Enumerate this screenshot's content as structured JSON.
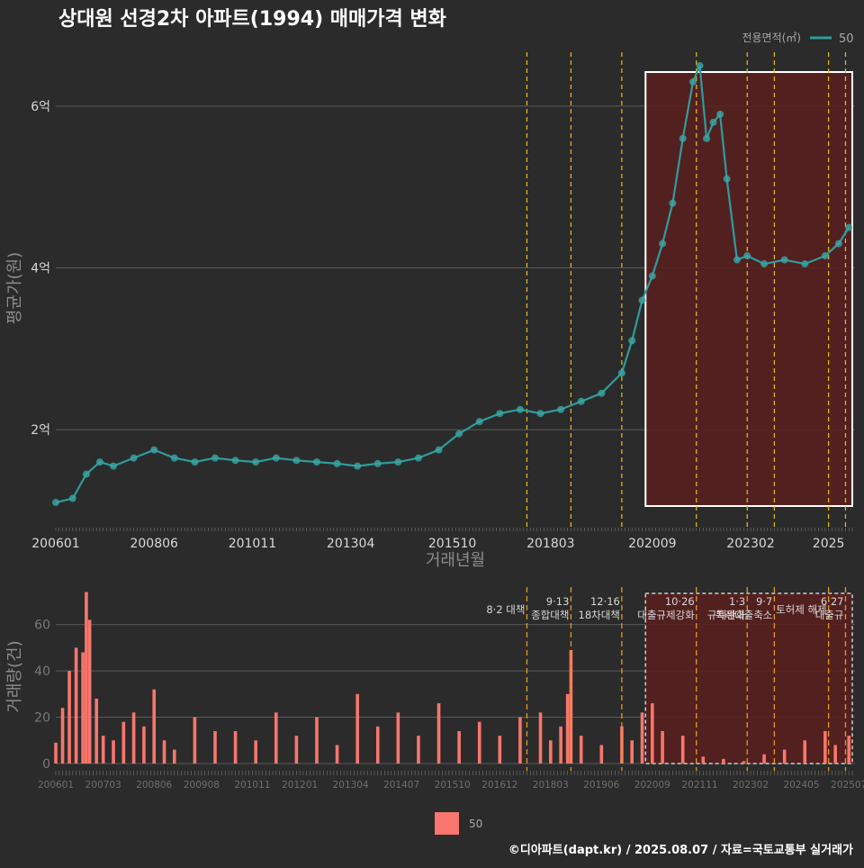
{
  "title": "상대원 선경2차 아파트(1994) 매매가격 변화",
  "footer": "©디아파트(dapt.kr) / 2025.08.07 / 자료=국토교통부 실거래가",
  "colors": {
    "background": "#2b2b2b",
    "price_line": "#2f9c9c",
    "price_point": "#3aa6a6",
    "volume_bar": "#f8766d",
    "policy_line": "#e5c21a",
    "highlight_fill": "#5a1f1f",
    "grid": "#5a5a5a"
  },
  "chart_data": [
    {
      "type": "scatter",
      "name": "price",
      "legend": {
        "title": "전용면적(㎡)",
        "label": "50",
        "position": "top-right"
      },
      "xlabel": "거래년월",
      "ylabel": "평균가(원)",
      "x_ticks": [
        "200601",
        "200806",
        "201011",
        "201304",
        "201510",
        "201803",
        "202009",
        "202302",
        "2025"
      ],
      "y_ticks": [
        {
          "value": 2,
          "label": "2억"
        },
        {
          "value": 4,
          "label": "4억"
        },
        {
          "value": 6,
          "label": "6억"
        }
      ],
      "y_unit": "억원",
      "ylim": [
        0.8,
        6.7
      ],
      "grid": true,
      "highlight_range": [
        "2020-07",
        "2025-08"
      ],
      "policy_dates": [
        "2017-08",
        "2018-09",
        "2019-12",
        "2021-10",
        "2023-01",
        "2023-09",
        "2025-01",
        "2025-06"
      ],
      "series": [
        {
          "name": "50",
          "x": [
            "2006-01",
            "2006-06",
            "2006-10",
            "2007-02",
            "2007-06",
            "2007-12",
            "2008-06",
            "2008-12",
            "2009-06",
            "2009-12",
            "2010-06",
            "2010-12",
            "2011-06",
            "2011-12",
            "2012-06",
            "2012-12",
            "2013-06",
            "2013-12",
            "2014-06",
            "2014-12",
            "2015-06",
            "2015-12",
            "2016-06",
            "2016-12",
            "2017-06",
            "2017-12",
            "2018-06",
            "2018-12",
            "2019-06",
            "2019-12",
            "2020-03",
            "2020-06",
            "2020-09",
            "2020-12",
            "2021-03",
            "2021-06",
            "2021-09",
            "2021-11",
            "2022-01",
            "2022-03",
            "2022-05",
            "2022-07",
            "2022-10",
            "2023-01",
            "2023-06",
            "2023-12",
            "2024-06",
            "2024-12",
            "2025-04",
            "2025-07"
          ],
          "y": [
            1.1,
            1.15,
            1.45,
            1.6,
            1.55,
            1.65,
            1.75,
            1.65,
            1.6,
            1.65,
            1.62,
            1.6,
            1.65,
            1.62,
            1.6,
            1.58,
            1.55,
            1.58,
            1.6,
            1.65,
            1.75,
            1.95,
            2.1,
            2.2,
            2.25,
            2.2,
            2.25,
            2.35,
            2.45,
            2.7,
            3.1,
            3.6,
            3.9,
            4.3,
            4.8,
            5.6,
            6.3,
            6.5,
            5.6,
            5.8,
            5.9,
            5.1,
            4.1,
            4.15,
            4.05,
            4.1,
            4.05,
            4.15,
            4.3,
            4.5
          ]
        }
      ]
    },
    {
      "type": "bar",
      "name": "volume",
      "ylabel": "거래량(건)",
      "x_ticks": [
        "200601",
        "200703",
        "200806",
        "200908",
        "201011",
        "201201",
        "201304",
        "201407",
        "201510",
        "201612",
        "201803",
        "201906",
        "202009",
        "202111",
        "202302",
        "202405",
        "202507"
      ],
      "y_ticks": [
        0,
        20,
        40,
        60
      ],
      "ylim": [
        0,
        75
      ],
      "grid": true,
      "legend": {
        "label": "50",
        "position": "bottom"
      },
      "annotations": [
        {
          "date": "2017-08",
          "lines": [
            "8·2 대책"
          ]
        },
        {
          "date": "2018-09",
          "lines": [
            "9·13",
            "종합대책"
          ]
        },
        {
          "date": "2019-12",
          "lines": [
            "12·16",
            "18차대책"
          ]
        },
        {
          "date": "2021-10",
          "lines": [
            "10·26",
            "대출규제강화"
          ]
        },
        {
          "date": "2023-01",
          "lines": [
            "1·3",
            "규제완화"
          ]
        },
        {
          "date": "2023-09",
          "lines": [
            "9·7",
            "특례대출축소"
          ]
        },
        {
          "date": "2025-01",
          "lines": [
            "토허제 해제"
          ]
        },
        {
          "date": "2025-06",
          "lines": [
            "6·27",
            "대출규"
          ]
        }
      ],
      "x": [
        "2006-01",
        "2006-03",
        "2006-05",
        "2006-07",
        "2006-09",
        "2006-10",
        "2006-11",
        "2007-01",
        "2007-03",
        "2007-06",
        "2007-09",
        "2007-12",
        "2008-03",
        "2008-06",
        "2008-09",
        "2008-12",
        "2009-06",
        "2009-12",
        "2010-06",
        "2010-12",
        "2011-06",
        "2011-12",
        "2012-06",
        "2012-12",
        "2013-06",
        "2013-12",
        "2014-06",
        "2014-12",
        "2015-06",
        "2015-12",
        "2016-06",
        "2016-12",
        "2017-06",
        "2017-12",
        "2018-03",
        "2018-06",
        "2018-08",
        "2018-09",
        "2018-12",
        "2019-06",
        "2019-12",
        "2020-03",
        "2020-06",
        "2020-09",
        "2020-12",
        "2021-06",
        "2021-12",
        "2022-06",
        "2022-12",
        "2023-06",
        "2023-12",
        "2024-06",
        "2024-12",
        "2025-03",
        "2025-07"
      ],
      "values": [
        9,
        24,
        40,
        50,
        48,
        74,
        62,
        28,
        12,
        10,
        18,
        22,
        16,
        32,
        10,
        6,
        20,
        14,
        14,
        10,
        22,
        12,
        20,
        8,
        30,
        16,
        22,
        12,
        26,
        14,
        18,
        12,
        20,
        22,
        10,
        16,
        30,
        49,
        12,
        8,
        16,
        10,
        22,
        26,
        14,
        12,
        3,
        2,
        1,
        4,
        6,
        10,
        14,
        8,
        12
      ]
    }
  ]
}
